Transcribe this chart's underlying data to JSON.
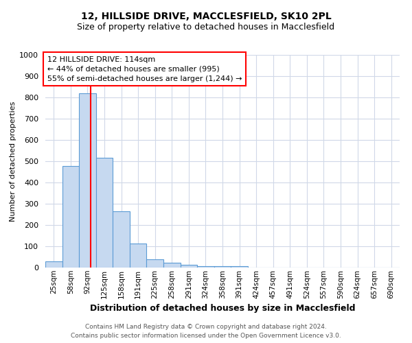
{
  "title1": "12, HILLSIDE DRIVE, MACCLESFIELD, SK10 2PL",
  "title2": "Size of property relative to detached houses in Macclesfield",
  "xlabel": "Distribution of detached houses by size in Macclesfield",
  "ylabel": "Number of detached properties",
  "footnote1": "Contains HM Land Registry data © Crown copyright and database right 2024.",
  "footnote2": "Contains public sector information licensed under the Open Government Licence v3.0.",
  "annotation_line1": "12 HILLSIDE DRIVE: 114sqm",
  "annotation_line2": "← 44% of detached houses are smaller (995)",
  "annotation_line3": "55% of semi-detached houses are larger (1,244) →",
  "bar_labels": [
    "25sqm",
    "58sqm",
    "92sqm",
    "125sqm",
    "158sqm",
    "191sqm",
    "225sqm",
    "258sqm",
    "291sqm",
    "324sqm",
    "358sqm",
    "391sqm",
    "424sqm",
    "457sqm",
    "491sqm",
    "524sqm",
    "557sqm",
    "590sqm",
    "624sqm",
    "657sqm",
    "690sqm"
  ],
  "bar_values": [
    30,
    478,
    820,
    515,
    265,
    112,
    38,
    22,
    12,
    8,
    8,
    8,
    0,
    0,
    0,
    0,
    0,
    0,
    0,
    0,
    0
  ],
  "bar_color": "#c6d9f0",
  "bar_edge_color": "#5b9bd5",
  "ylim": [
    0,
    1000
  ],
  "yticks": [
    0,
    100,
    200,
    300,
    400,
    500,
    600,
    700,
    800,
    900,
    1000
  ],
  "grid_color": "#d0d8e8",
  "background_color": "#ffffff"
}
